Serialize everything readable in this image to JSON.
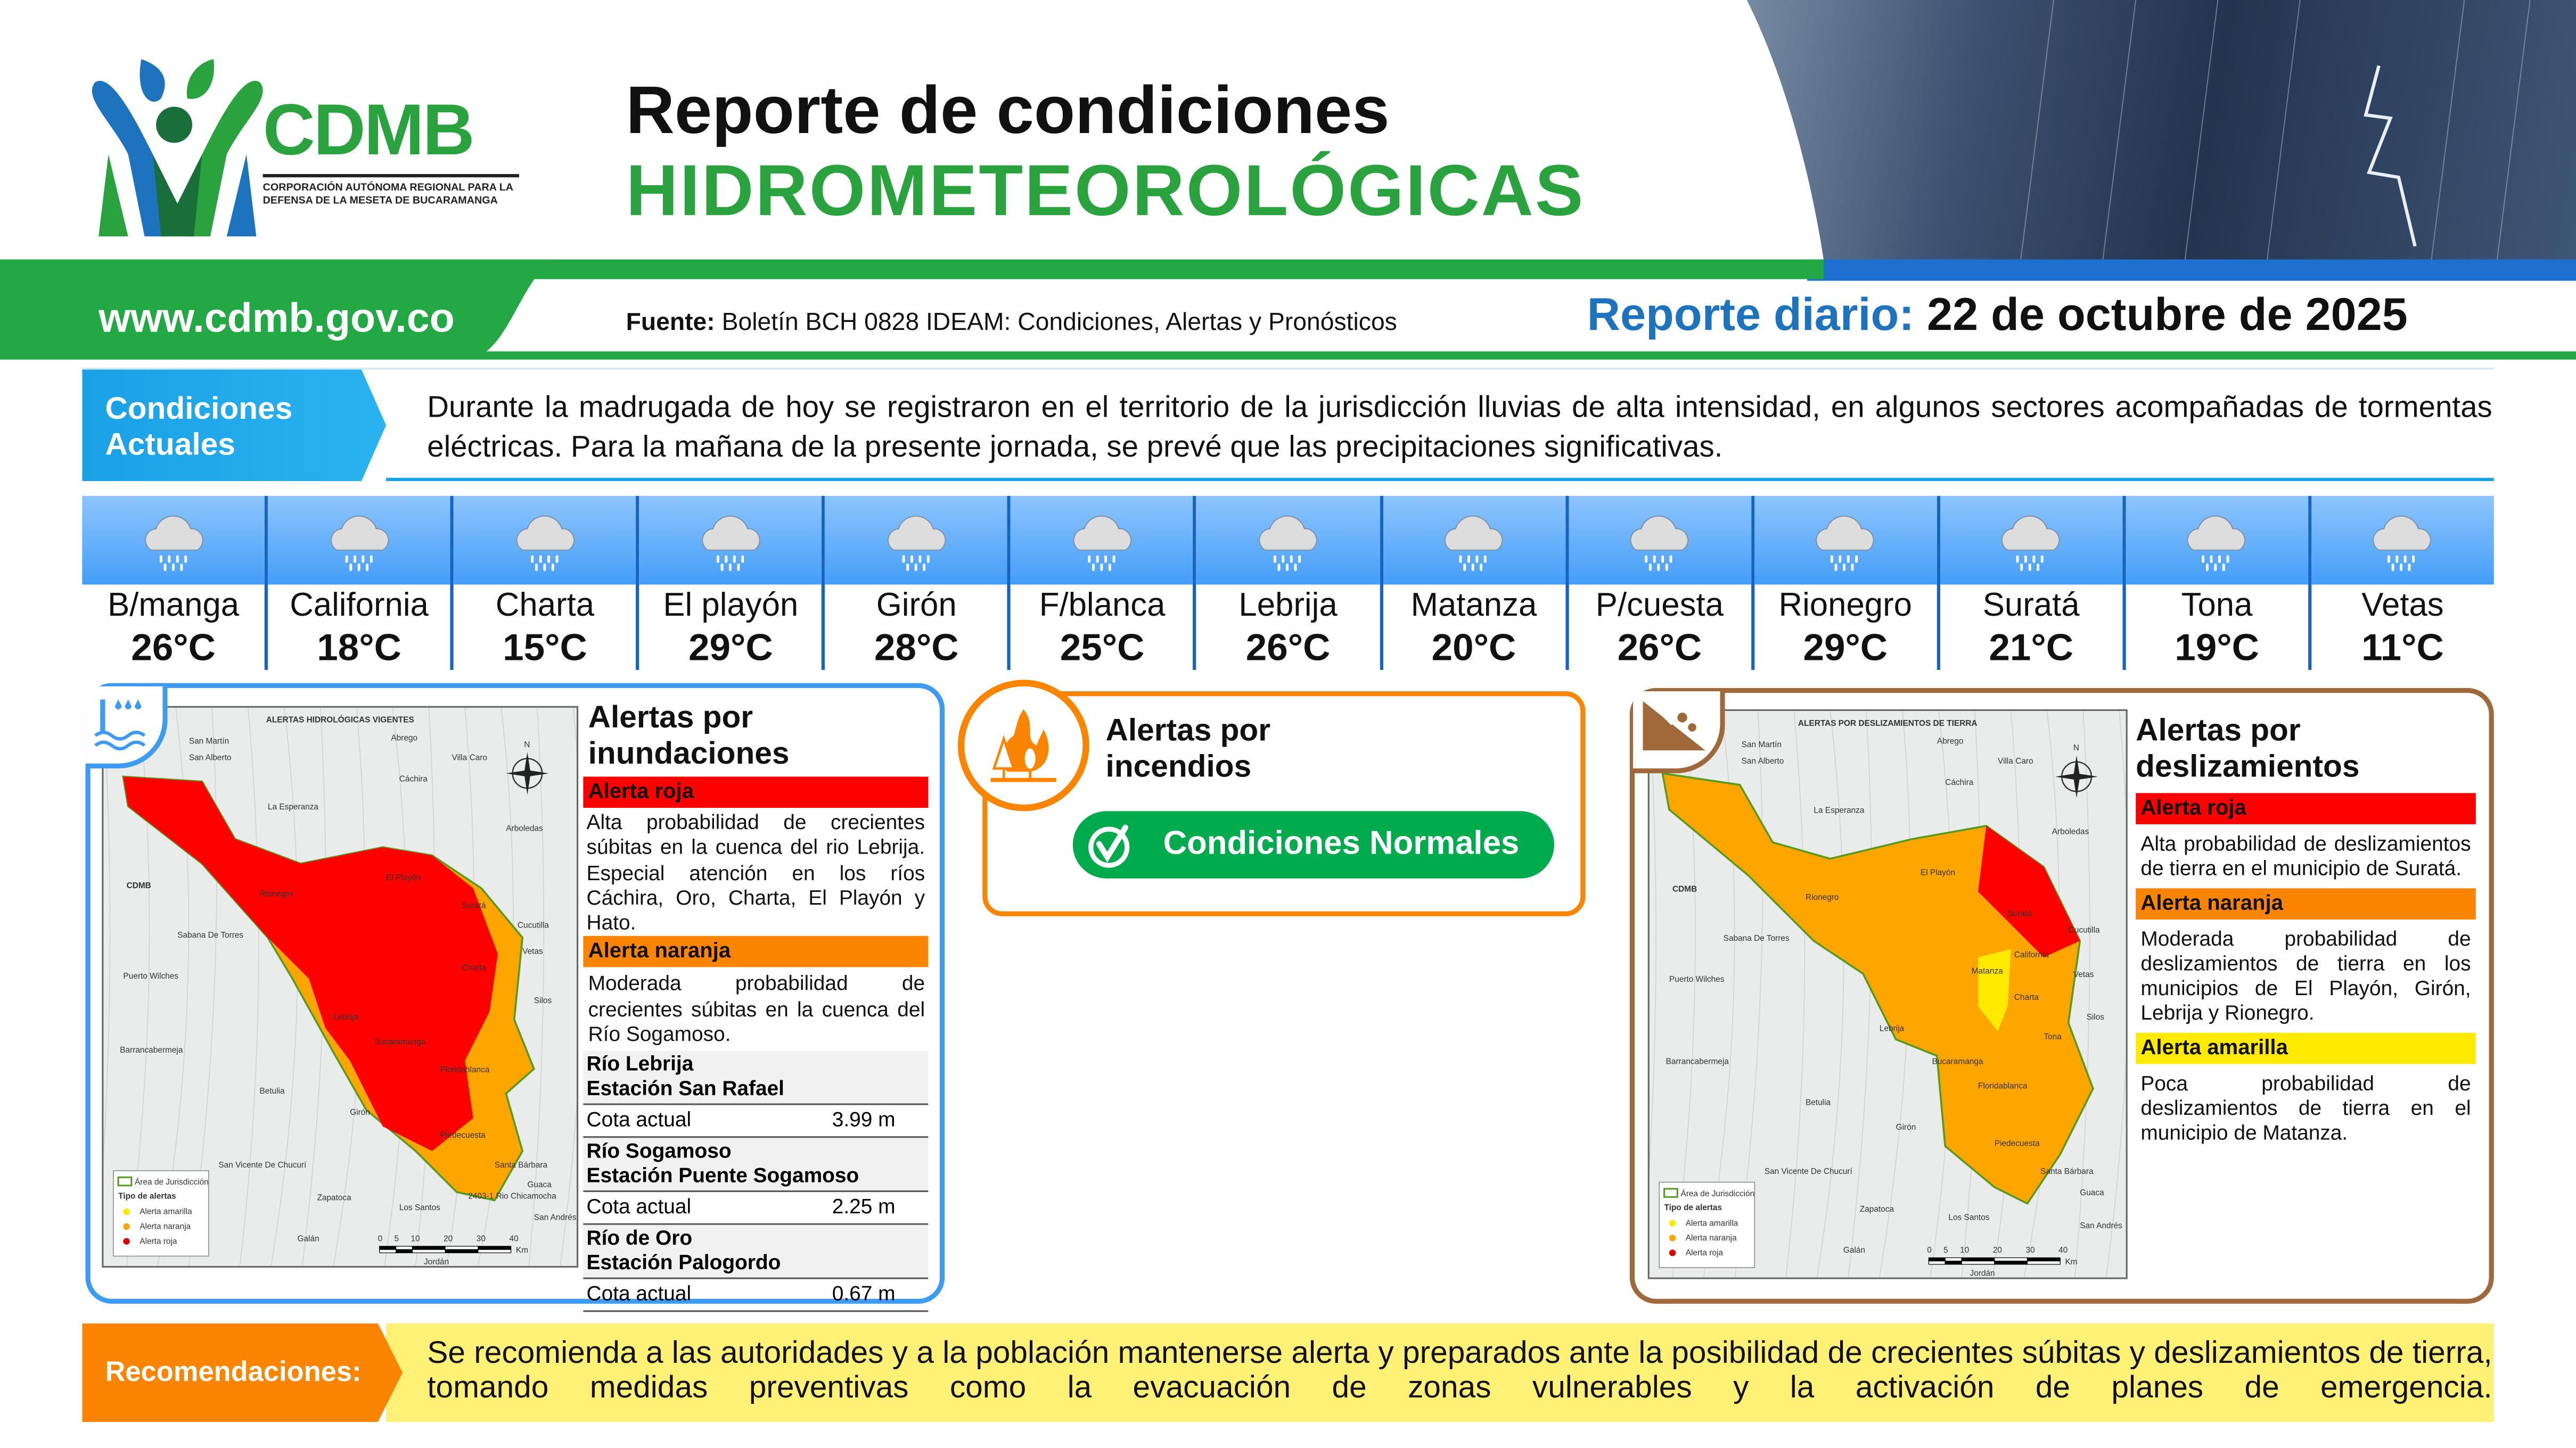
{
  "header": {
    "logo_text": "CDMB",
    "logo_subtitle": "CORPORACIÓN AUTÓNOMA REGIONAL PARA LA DEFENSA DE LA MESETA DE BUCARAMANGA",
    "title_line1": "Reporte de condiciones",
    "title_line2": "HIDROMETEOROLÓGICAS",
    "website": "www.cdmb.gov.co",
    "source_label": "Fuente:",
    "source_text": "Boletín BCH 0828 IDEAM: Condiciones, Alertas y Pronósticos",
    "report_label": "Reporte diario:",
    "report_date": "22 de octubre de 2025"
  },
  "conditions": {
    "label": "Condiciones Actuales",
    "text": "Durante la madrugada de hoy se registraron en el territorio de la jurisdicción lluvias de alta intensidad, en algunos sectores acompañadas de tormentas eléctricas. Para la mañana de la presente jornada, se prevé que las precipitaciones significativas."
  },
  "weather": {
    "icon": "rain-cloud-icon",
    "cities": [
      {
        "name": "B/manga",
        "temp": "26°C"
      },
      {
        "name": "California",
        "temp": "18°C"
      },
      {
        "name": "Charta",
        "temp": "15°C"
      },
      {
        "name": "El playón",
        "temp": "29°C"
      },
      {
        "name": "Girón",
        "temp": "28°C"
      },
      {
        "name": "F/blanca",
        "temp": "25°C"
      },
      {
        "name": "Lebrija",
        "temp": "26°C"
      },
      {
        "name": "Matanza",
        "temp": "20°C"
      },
      {
        "name": "P/cuesta",
        "temp": "26°C"
      },
      {
        "name": "Rionegro",
        "temp": "29°C"
      },
      {
        "name": "Suratá",
        "temp": "21°C"
      },
      {
        "name": "Tona",
        "temp": "19°C"
      },
      {
        "name": "Vetas",
        "temp": "11°C"
      }
    ]
  },
  "flood": {
    "title": "Alertas por inundaciones",
    "map_title": "ALERTAS HIDROLÓGICAS VIGENTES",
    "map_towns": [
      "San Martín",
      "San Alberto",
      "Abrego",
      "Villa Caro",
      "Cáchira",
      "La Esperanza",
      "Arboledas",
      "Rionegro",
      "El Playón",
      "Suratá",
      "Cucutilla",
      "Sabana De Torres",
      "Puerto Wilches",
      "Lebrija",
      "Charta",
      "Vetas",
      "Silos",
      "Barrancabermeja",
      "Betulia",
      "Bucaramanga",
      "Floridablanca",
      "Girón",
      "Piedecuesta",
      "San Vicente De Chucurí",
      "Zapatoca",
      "Los Santos",
      "Galán",
      "Santa Bárbara",
      "Guaca",
      "San Andrés",
      "Jordán"
    ],
    "map_basin_label": "2403-1 Rio Chicamocha",
    "legend": {
      "area": "Área de Jurisdicción",
      "type_title": "Tipo de alertas",
      "yellow": "Alerta amarilla",
      "orange": "Alerta naranja",
      "red": "Alerta roja"
    },
    "scale": {
      "ticks": [
        "0",
        "5",
        "10",
        "20",
        "30",
        "40"
      ],
      "unit": "Km"
    },
    "red_label": "Alerta roja",
    "red_text": "Alta probabilidad de crecientes súbitas en la cuenca del rio Lebrija. Especial atención en los ríos Cáchira, Oro, Charta, El Playón y Hato.",
    "orange_label": "Alerta naranja",
    "orange_text": "Moderada probabilidad de crecientes súbitas en la cuenca del Río Sogamoso.",
    "stations": [
      {
        "river": "Río Lebrija",
        "station": "Estación San Rafael",
        "label": "Cota actual",
        "value": "3.99 m"
      },
      {
        "river": "Río Sogamoso",
        "station": "Estación Puente Sogamoso",
        "label": "Cota actual",
        "value": "2.25 m"
      },
      {
        "river": "Río de Oro",
        "station": "Estación Palogordo",
        "label": "Cota actual",
        "value": "0.67 m"
      }
    ]
  },
  "fire": {
    "title": "Alertas por incendios",
    "status": "Condiciones Normales"
  },
  "landslide": {
    "title": "Alertas por deslizamientos",
    "map_title": "ALERTAS POR DESLIZAMIENTOS DE TIERRA",
    "map_towns": [
      "San Martín",
      "San Alberto",
      "Abrego",
      "Villa Caro",
      "Cáchira",
      "La Esperanza",
      "Arboledas",
      "Rionegro",
      "El Playón",
      "Suratá",
      "Cucutilla",
      "Sabana De Torres",
      "Puerto Wilches",
      "Matanza",
      "California",
      "Vetas",
      "Charta",
      "Lebrija",
      "Silos",
      "Tona",
      "Barrancabermeja",
      "Bucaramanga",
      "Floridablanca",
      "Betulia",
      "Girón",
      "Piedecuesta",
      "San Vicente De Chucurí",
      "Santa Bárbara",
      "Guaca",
      "Zapatoca",
      "Los Santos",
      "Galán",
      "San Andrés",
      "Jordán"
    ],
    "legend": {
      "area": "Área de Jurisdicción",
      "type_title": "Tipo de alertas",
      "yellow": "Alerta amarilla",
      "orange": "Alerta naranja",
      "red": "Alerta roja"
    },
    "scale": {
      "ticks": [
        "0",
        "5",
        "10",
        "20",
        "30",
        "40"
      ],
      "unit": "Km"
    },
    "red_label": "Alerta roja",
    "red_text": "Alta probabilidad de deslizamientos de tierra en el municipio de Suratá.",
    "orange_label": "Alerta naranja",
    "orange_text": "Moderada probabilidad de deslizamientos de tierra en los municipios de El Playón, Girón, Lebrija y Rionegro.",
    "yellow_label": "Alerta amarilla",
    "yellow_text": "Poca probabilidad de deslizamientos de tierra en el municipio de Matanza."
  },
  "recommendations": {
    "label": "Recomendaciones:",
    "text": "Se recomienda a las autoridades y a la población mantenerse alerta y preparados ante la posibilidad de crecientes súbitas y deslizamientos de tierra, tomando medidas preventivas como la evacuación de zonas vulnerables y la activación de planes de emergencia."
  },
  "colors": {
    "green": "#22a845",
    "blue": "#1e73be",
    "red": "#ff0000",
    "orange": "#fb8500",
    "yellow": "#ffea00",
    "brown": "#a0693a"
  }
}
